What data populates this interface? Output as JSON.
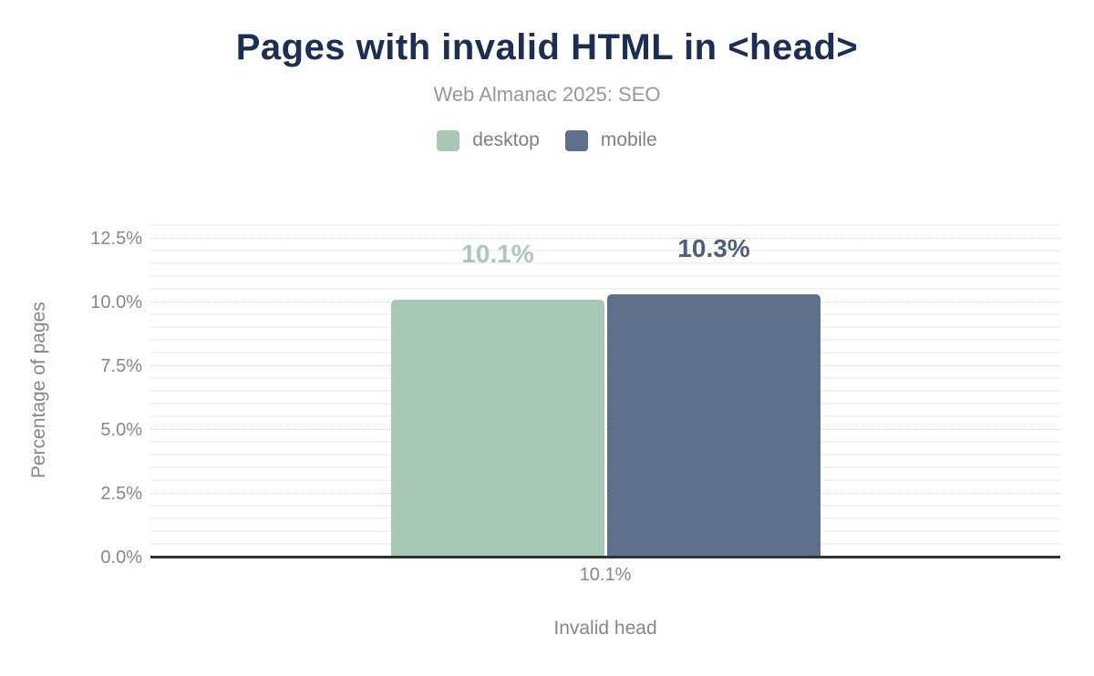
{
  "chart_data": {
    "type": "bar",
    "title": "Pages with invalid HTML in <head>",
    "subtitle": "Web Almanac 2025: SEO",
    "xlabel": "Invalid head",
    "ylabel": "Percentage of pages",
    "categories": [
      "Invalid head"
    ],
    "x_tick_labels": [
      "10.1%"
    ],
    "series": [
      {
        "name": "desktop",
        "value": 10.1,
        "label": "10.1%",
        "color": "#a8c8b5",
        "label_color": "#a9c9b6"
      },
      {
        "name": "mobile",
        "value": 10.3,
        "label": "10.3%",
        "color": "#5f708c",
        "label_color": "#4d5e80"
      }
    ],
    "y_ticks": [
      {
        "value": 0,
        "label": "0.0%"
      },
      {
        "value": 2.5,
        "label": "2.5%"
      },
      {
        "value": 5,
        "label": "5.0%"
      },
      {
        "value": 7.5,
        "label": "7.5%"
      },
      {
        "value": 10,
        "label": "10.0%"
      },
      {
        "value": 12.5,
        "label": "12.5%"
      }
    ],
    "ylim": [
      0,
      13.1
    ],
    "minor_grid_step": 0.5,
    "major_grid_step": 2.5,
    "grid": true,
    "legend_position": "top"
  },
  "colors": {
    "title": "#1c2e52",
    "subtitle": "#95989d",
    "axis_text": "#84878e",
    "legend_text": "#7c8086",
    "baseline": "#2f3033",
    "major_grid": "#cfd1d5",
    "minor_grid": "#f3f3f4",
    "background": "#ffffff"
  }
}
